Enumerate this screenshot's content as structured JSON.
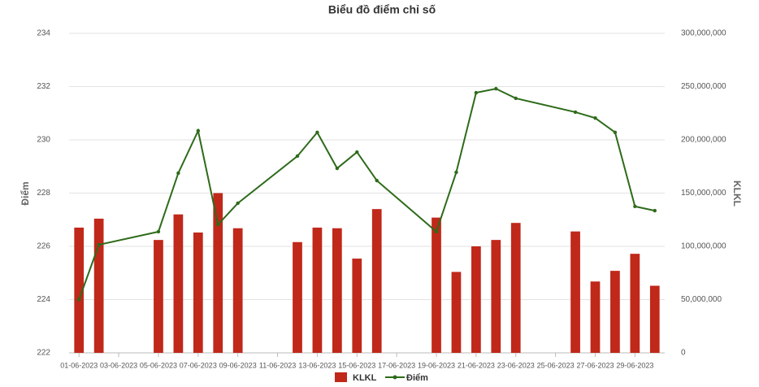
{
  "chart_data": {
    "type": "bar-line",
    "title": "Biểu đồ điểm chỉ số",
    "y_label": "Điểm",
    "y2_label": "KLKL",
    "categories": [
      "01-06-2023",
      null,
      "03-06-2023",
      null,
      "05-06-2023",
      null,
      "07-06-2023",
      null,
      "09-06-2023",
      null,
      "11-06-2023",
      null,
      "13-06-2023",
      null,
      "15-06-2023",
      null,
      "17-06-2023",
      null,
      "19-06-2023",
      null,
      "21-06-2023",
      null,
      "23-06-2023",
      null,
      "25-06-2023",
      null,
      "27-06-2023",
      null,
      "29-06-2023",
      null
    ],
    "series": [
      {
        "name": "KLKL",
        "type": "bar",
        "axis": "y2",
        "color": "#c0281a",
        "values": [
          117600000,
          126000000,
          null,
          null,
          106000000,
          130000000,
          113000000,
          150000000,
          117000000,
          null,
          null,
          104000000,
          117600000,
          117000000,
          88500000,
          135000000,
          null,
          null,
          127000000,
          76000000,
          100000000,
          106000000,
          122000000,
          null,
          null,
          114000000,
          67000000,
          77000000,
          93000000,
          63000000
        ]
      },
      {
        "name": "Điểm",
        "type": "line",
        "color": "#2e6b1a",
        "values": [
          224.0,
          226.06,
          null,
          null,
          226.55,
          228.75,
          230.34,
          226.82,
          227.62,
          null,
          null,
          229.39,
          230.28,
          228.93,
          229.54,
          228.47,
          null,
          null,
          226.55,
          228.78,
          231.77,
          231.92,
          231.56,
          null,
          null,
          231.04,
          230.82,
          230.28,
          227.5,
          227.34
        ]
      }
    ],
    "ylim": [
      222,
      234
    ],
    "yticks": [
      222,
      224,
      226,
      228,
      230,
      232,
      234
    ],
    "y2lim": [
      0,
      300000000
    ],
    "y2ticks": [
      0,
      {
        "value": 50000000,
        "label": "50,000,000"
      },
      {
        "value": 100000000,
        "label": "100,000,000"
      },
      {
        "value": 150000000,
        "label": "150,000,000"
      },
      {
        "value": 200000000,
        "label": "200,000,000"
      },
      {
        "value": 250000000,
        "label": "250,000,000"
      },
      {
        "value": 300000000,
        "label": "300,000,000"
      }
    ],
    "grid": true,
    "legend": "bottom"
  }
}
